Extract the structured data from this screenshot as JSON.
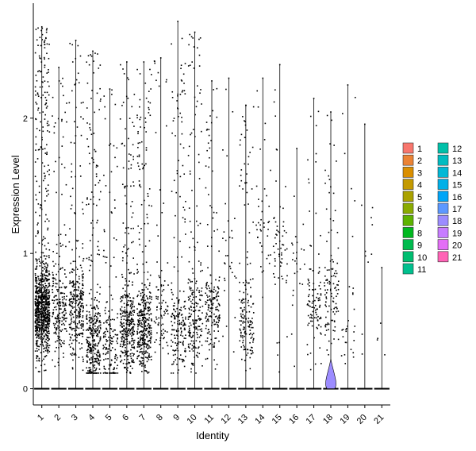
{
  "chart_data": {
    "type": "violin",
    "xlabel": "Identity",
    "ylabel": "Expression Level",
    "categories": [
      "1",
      "2",
      "3",
      "4",
      "5",
      "6",
      "7",
      "8",
      "9",
      "10",
      "11",
      "12",
      "13",
      "14",
      "15",
      "16",
      "17",
      "18",
      "19",
      "20",
      "21"
    ],
    "yticks": [
      0,
      1,
      2
    ],
    "ylim": [
      -0.12,
      2.85
    ],
    "series": [
      {
        "name": "1",
        "color": "#F8766D",
        "max": 2.68,
        "n_points": 900,
        "center": 0.6
      },
      {
        "name": "2",
        "color": "#EB8335",
        "max": 2.38,
        "n_points": 220,
        "center": 0.6
      },
      {
        "name": "3",
        "color": "#DA8F00",
        "max": 2.58,
        "n_points": 300,
        "center": 0.6
      },
      {
        "name": "4",
        "color": "#C49A00",
        "max": 2.5,
        "n_points": 350,
        "center": 0.35
      },
      {
        "name": "5",
        "color": "#AAA200",
        "max": 2.22,
        "n_points": 160,
        "center": 0.3
      },
      {
        "name": "6",
        "color": "#8AAB00",
        "max": 2.42,
        "n_points": 360,
        "center": 0.45
      },
      {
        "name": "7",
        "color": "#5EB300",
        "max": 2.42,
        "n_points": 380,
        "center": 0.45
      },
      {
        "name": "8",
        "color": "#00B81F",
        "max": 2.45,
        "n_points": 90,
        "center": 0.55
      },
      {
        "name": "9",
        "color": "#00BB4E",
        "max": 2.72,
        "n_points": 200,
        "center": 0.45
      },
      {
        "name": "10",
        "color": "#00BE71",
        "max": 2.64,
        "n_points": 210,
        "center": 0.5
      },
      {
        "name": "11",
        "color": "#00C08E",
        "max": 2.28,
        "n_points": 180,
        "center": 0.6
      },
      {
        "name": "12",
        "color": "#00C0A9",
        "max": 2.3,
        "n_points": 30,
        "center": 1.0
      },
      {
        "name": "13",
        "color": "#00BCC1",
        "max": 2.1,
        "n_points": 160,
        "center": 0.5
      },
      {
        "name": "14",
        "color": "#00B8D6",
        "max": 2.3,
        "n_points": 40,
        "center": 1.2
      },
      {
        "name": "15",
        "color": "#00B0E8",
        "max": 2.4,
        "n_points": 60,
        "center": 1.0
      },
      {
        "name": "16",
        "color": "#00A5F7",
        "max": 1.78,
        "n_points": 25,
        "center": 1.0
      },
      {
        "name": "17",
        "color": "#5C98FF",
        "max": 2.15,
        "n_points": 100,
        "center": 0.6
      },
      {
        "name": "18",
        "color": "#9C8CFF",
        "max": 2.05,
        "n_points": 110,
        "center": 0.7
      },
      {
        "name": "19",
        "color": "#C77CFF",
        "max": 2.25,
        "n_points": 30,
        "center": 0.5
      },
      {
        "name": "20",
        "color": "#E36EF6",
        "max": 1.96,
        "n_points": 10,
        "center": 1.2
      },
      {
        "name": "21",
        "color": "#FF63B6",
        "max": 0.9,
        "n_points": 4,
        "center": 0.4
      }
    ]
  }
}
